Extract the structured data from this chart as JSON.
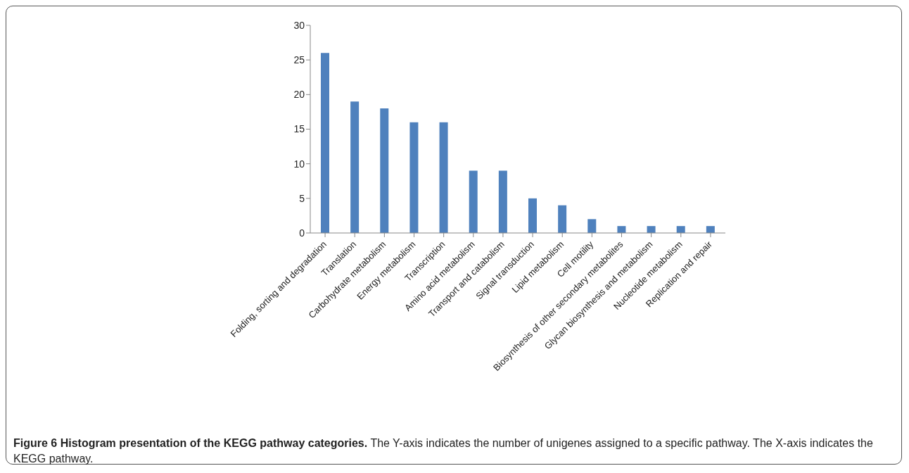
{
  "chart_data": {
    "type": "bar",
    "title": "Figure 6 Histogram presentation of the KEGG pathway categories.",
    "annotations": [
      "The Y-axis indicates the number of unigenes assigned to a specific pathway. The X-axis indicates the KEGG pathway."
    ],
    "categories": [
      "Folding, sorting and degradation",
      "Translation",
      "Carbohydrate metabolism",
      "Energy metabolism",
      "Transcription",
      "Amino acid metabolism",
      "Transport and catabolism",
      "Signal transduction",
      "Lipid metabolism",
      "Cell motility",
      "Biosynthesis of other secondary metabolites",
      "Glycan biosynthesis and metabolism",
      "Nucleotide metabolism",
      "Replication and repair"
    ],
    "values": [
      26,
      19,
      18,
      16,
      16,
      9,
      9,
      5,
      4,
      2,
      1,
      1,
      1,
      1
    ],
    "color": "#4f81bd",
    "ylim": [
      0,
      30
    ],
    "yticks": [
      0,
      5,
      10,
      15,
      20,
      25,
      30
    ],
    "grid": false,
    "legend": false
  }
}
